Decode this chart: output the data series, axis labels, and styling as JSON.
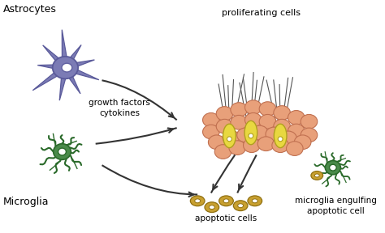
{
  "bg_color": "#ffffff",
  "labels": {
    "astrocytes": "Astrocytes",
    "microglia": "Microglia",
    "proliferating": "proliferating cells",
    "growth_factors": "growth factors\ncytokines",
    "apoptotic_cells": "apoptotic cells",
    "microglia_engulfing": "microglia engulfing\napoptotic cell"
  },
  "colors": {
    "astrocyte_fill": "#7b7bb5",
    "astrocyte_outline": "#5a5a9a",
    "microglia_fill": "#4a8a4a",
    "microglia_outline": "#2a6a2a",
    "proliferating_fill": "#e8a07a",
    "proliferating_outline": "#c07050",
    "neural_stem_fill": "#e8d840",
    "neural_stem_outline": "#b0a020",
    "apoptotic_fill": "#c8a030",
    "apoptotic_outline": "#907010",
    "nucleus_fill": "#6060a0",
    "nucleus_fill_green": "#2a6a2a",
    "nucleus_fill_yellow": "#b0a020",
    "arrow_color": "#333333",
    "hair_color": "#555555"
  }
}
